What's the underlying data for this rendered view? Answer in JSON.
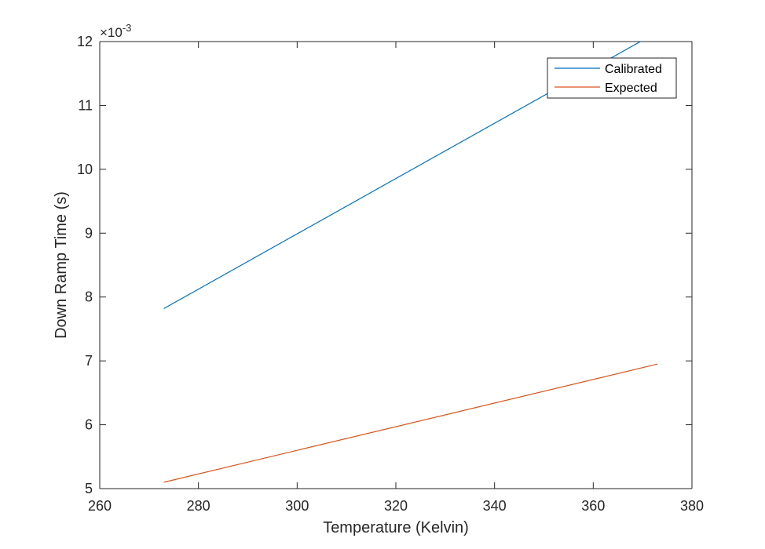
{
  "chart_data": {
    "type": "line",
    "xlabel": "Temperature (Kelvin)",
    "ylabel": "Down Ramp Time (s)",
    "xlim": [
      260,
      380
    ],
    "ylim": [
      5,
      12
    ],
    "y_exponent_label": "×10",
    "y_exponent_power": "-3",
    "x_ticks": [
      "260",
      "280",
      "300",
      "320",
      "340",
      "360",
      "380"
    ],
    "y_ticks": [
      "5",
      "6",
      "7",
      "8",
      "9",
      "10",
      "11",
      "12"
    ],
    "grid": false,
    "legend_position": "top-right",
    "series": [
      {
        "name": "Calibrated",
        "color": "#0072BD",
        "x": [
          273,
          373
        ],
        "y": [
          7.82,
          12.15
        ]
      },
      {
        "name": "Expected",
        "color": "#D95319",
        "x": [
          273,
          373
        ],
        "y": [
          5.1,
          6.95
        ]
      }
    ]
  }
}
